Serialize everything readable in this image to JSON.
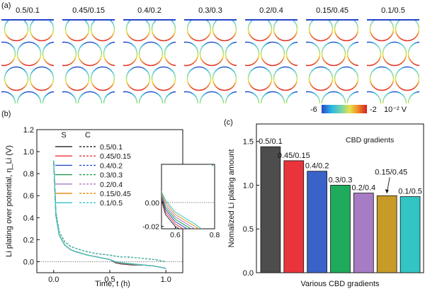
{
  "figure": {
    "panel_a": {
      "label": "(a)",
      "subpanels": [
        "0.5/0.1",
        "0.45/0.15",
        "0.4/0.2",
        "0.3/0.3",
        "0.2/0.4",
        "0.15/0.45",
        "0.1/0.5"
      ],
      "colorbar": {
        "min_label": "-6",
        "max_label": "-2",
        "unit": "10⁻² V"
      }
    },
    "panel_b": {
      "label": "(b)"
    },
    "panel_c": {
      "label": "(c)"
    }
  },
  "chart_data": [
    {
      "type": "line",
      "title": "",
      "xlabel": "Time, t (h)",
      "ylabel": "Li plating over potential, η_Li (V)",
      "xlim": [
        -0.15,
        1.15
      ],
      "ylim": [
        -0.1,
        1.2
      ],
      "xticks": [
        "0.0",
        "0.5",
        "1.0"
      ],
      "yticks": [
        "0.0",
        "0.2",
        "0.4",
        "0.6",
        "0.8",
        "1.0",
        "1.2"
      ],
      "legend_headers": {
        "solid": "S",
        "dashed": "C"
      },
      "x": [
        0.0,
        0.02,
        0.05,
        0.1,
        0.15,
        0.2,
        0.3,
        0.4,
        0.5,
        0.55,
        0.6,
        0.7,
        0.8,
        0.9,
        1.0
      ],
      "series": [
        {
          "name": "0.5/0.1",
          "color": "#333333",
          "solid": [
            0.92,
            0.42,
            0.24,
            0.15,
            0.11,
            0.09,
            0.06,
            0.04,
            0.02,
            -0.01,
            -0.02,
            -0.03,
            -0.03,
            -0.04,
            -0.06
          ],
          "dashed": [
            0.92,
            0.45,
            0.27,
            0.18,
            0.14,
            0.12,
            0.09,
            0.07,
            0.06,
            0.05,
            0.045,
            0.04,
            0.03,
            0.02,
            0.0
          ]
        },
        {
          "name": "0.45/0.15",
          "color": "#e8343a",
          "solid": [
            0.92,
            0.42,
            0.24,
            0.15,
            0.11,
            0.09,
            0.06,
            0.04,
            0.02,
            -0.008,
            -0.018,
            -0.028,
            -0.03,
            -0.04,
            -0.06
          ],
          "dashed": [
            0.92,
            0.45,
            0.27,
            0.18,
            0.14,
            0.12,
            0.09,
            0.07,
            0.06,
            0.05,
            0.045,
            0.04,
            0.03,
            0.02,
            0.0
          ]
        },
        {
          "name": "0.4/0.2",
          "color": "#2b50c8",
          "solid": [
            0.92,
            0.42,
            0.24,
            0.15,
            0.11,
            0.09,
            0.06,
            0.04,
            0.02,
            -0.006,
            -0.016,
            -0.026,
            -0.03,
            -0.04,
            -0.06
          ],
          "dashed": [
            0.92,
            0.45,
            0.27,
            0.18,
            0.14,
            0.12,
            0.09,
            0.07,
            0.06,
            0.05,
            0.045,
            0.04,
            0.03,
            0.02,
            0.0
          ]
        },
        {
          "name": "0.3/0.3",
          "color": "#1f9a4a",
          "solid": [
            0.92,
            0.42,
            0.24,
            0.15,
            0.11,
            0.09,
            0.06,
            0.04,
            0.02,
            -0.004,
            -0.014,
            -0.024,
            -0.03,
            -0.04,
            -0.06
          ],
          "dashed": [
            0.92,
            0.45,
            0.27,
            0.18,
            0.14,
            0.12,
            0.09,
            0.07,
            0.06,
            0.05,
            0.045,
            0.04,
            0.03,
            0.02,
            0.0
          ]
        },
        {
          "name": "0.2/0.4",
          "color": "#a67cc4",
          "solid": [
            0.92,
            0.42,
            0.24,
            0.15,
            0.11,
            0.09,
            0.06,
            0.04,
            0.02,
            -0.002,
            -0.012,
            -0.022,
            -0.03,
            -0.04,
            -0.06
          ],
          "dashed": [
            0.92,
            0.45,
            0.27,
            0.18,
            0.14,
            0.12,
            0.09,
            0.07,
            0.06,
            0.05,
            0.045,
            0.04,
            0.03,
            0.02,
            0.0
          ]
        },
        {
          "name": "0.15/0.45",
          "color": "#e8901a",
          "solid": [
            0.92,
            0.42,
            0.24,
            0.15,
            0.11,
            0.09,
            0.06,
            0.04,
            0.02,
            0.0,
            -0.01,
            -0.02,
            -0.03,
            -0.04,
            -0.06
          ],
          "dashed": [
            0.92,
            0.45,
            0.27,
            0.18,
            0.14,
            0.12,
            0.09,
            0.07,
            0.06,
            0.05,
            0.045,
            0.04,
            0.03,
            0.02,
            0.0
          ]
        },
        {
          "name": "0.1/0.5",
          "color": "#33c4c4",
          "solid": [
            0.92,
            0.42,
            0.24,
            0.15,
            0.11,
            0.09,
            0.06,
            0.04,
            0.02,
            0.002,
            -0.008,
            -0.018,
            -0.03,
            -0.04,
            -0.06
          ],
          "dashed": [
            0.92,
            0.45,
            0.27,
            0.18,
            0.14,
            0.12,
            0.09,
            0.07,
            0.06,
            0.05,
            0.045,
            0.04,
            0.03,
            0.02,
            0.0
          ]
        }
      ],
      "inset": {
        "xlim": [
          0.53,
          0.8
        ],
        "ylim": [
          -0.022,
          0.032
        ],
        "xticks": [
          "0.6",
          "0.8"
        ],
        "yticks": [
          "0.00",
          "-0.02"
        ]
      }
    },
    {
      "type": "bar",
      "title": "",
      "annotation": "CBD gradients",
      "xlabel": "Various CBD gradients",
      "ylabel": "Nomalized Li plating amount",
      "ylim": [
        0.0,
        1.7
      ],
      "yticks": [
        "0.0",
        "0.5",
        "1.0",
        "1.5"
      ],
      "categories": [
        "0.5/0.1",
        "0.45/0.15",
        "0.4/0.2",
        "0.3/0.3",
        "0.2/0.4",
        "0.15/0.45",
        "0.1/0.5"
      ],
      "values": [
        1.44,
        1.28,
        1.16,
        1.0,
        0.91,
        0.88,
        0.87
      ],
      "colors": [
        "#4d4d4d",
        "#e8343a",
        "#3a62c8",
        "#1fab5c",
        "#a67cc4",
        "#c89a28",
        "#33c4c4"
      ]
    }
  ]
}
